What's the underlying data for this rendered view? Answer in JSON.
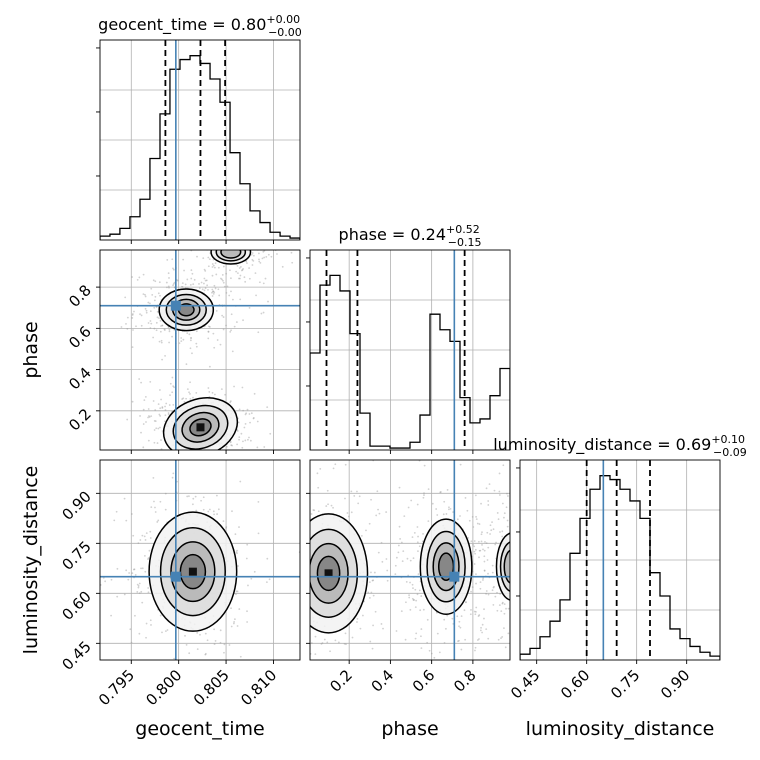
{
  "chart_data": {
    "type": "corner",
    "parameters": [
      "geocent_time",
      "phase",
      "luminosity_distance"
    ],
    "truths": {
      "geocent_time": 0.7997,
      "phase": 0.71,
      "luminosity_distance": 0.65
    },
    "titles": [
      {
        "parameter": "geocent_time",
        "label": "geocent_time",
        "median": "0.80",
        "plus": "+0.00",
        "minus": "−0.00"
      },
      {
        "parameter": "phase",
        "label": "phase",
        "median": "0.24",
        "plus": "+0.52",
        "minus": "−0.15"
      },
      {
        "parameter": "luminosity_distance",
        "label": "luminosity_distance",
        "median": "0.69",
        "plus": "+0.10",
        "minus": "−0.09"
      }
    ],
    "ranges": {
      "geocent_time": [
        0.7917,
        0.8128
      ],
      "phase": [
        0.01,
        0.98
      ],
      "luminosity_distance": [
        0.4,
        1.0
      ]
    },
    "ticks": {
      "geocent_time": [
        "0.795",
        "0.800",
        "0.805",
        "0.810"
      ],
      "phase": [
        "0.2",
        "0.4",
        "0.6",
        "0.8"
      ],
      "luminosity_distance": [
        "0.45",
        "0.60",
        "0.75",
        "0.90"
      ]
    },
    "quantile_lines": {
      "geocent_time": [
        0.7986,
        0.8023,
        0.8049
      ],
      "phase": [
        0.09,
        0.24,
        0.76
      ],
      "luminosity_distance": [
        0.6,
        0.69,
        0.79
      ]
    },
    "histograms": {
      "geocent_time": {
        "bin_edges": [
          0.7917,
          0.79275,
          0.7938,
          0.79486,
          0.79592,
          0.79697,
          0.79803,
          0.79908,
          0.80014,
          0.8012,
          0.80225,
          0.80331,
          0.80436,
          0.80542,
          0.80647,
          0.80753,
          0.80858,
          0.80964,
          0.8107,
          0.81175,
          0.8128
        ],
        "counts": [
          0.02,
          0.03,
          0.06,
          0.12,
          0.21,
          0.42,
          0.65,
          0.88,
          0.93,
          0.95,
          0.91,
          0.83,
          0.71,
          0.45,
          0.29,
          0.15,
          0.09,
          0.04,
          0.02,
          0.01
        ]
      },
      "phase": {
        "bin_edges": [
          0.01,
          0.0585,
          0.107,
          0.1555,
          0.204,
          0.2525,
          0.301,
          0.3495,
          0.398,
          0.4465,
          0.495,
          0.5435,
          0.592,
          0.6405,
          0.689,
          0.7375,
          0.786,
          0.8345,
          0.883,
          0.9315,
          0.98
        ],
        "counts": [
          0.5,
          0.85,
          0.9,
          0.82,
          0.6,
          0.19,
          0.02,
          0.02,
          0.01,
          0.01,
          0.04,
          0.18,
          0.7,
          0.62,
          0.56,
          0.27,
          0.14,
          0.16,
          0.28,
          0.42
        ]
      },
      "luminosity_distance": {
        "bin_edges": [
          0.4,
          0.43,
          0.46,
          0.49,
          0.52,
          0.55,
          0.58,
          0.61,
          0.64,
          0.67,
          0.7,
          0.73,
          0.76,
          0.79,
          0.82,
          0.85,
          0.88,
          0.91,
          0.94,
          0.97,
          1.0
        ],
        "counts": [
          0.03,
          0.06,
          0.12,
          0.2,
          0.31,
          0.55,
          0.73,
          0.88,
          0.95,
          0.93,
          0.88,
          0.82,
          0.73,
          0.45,
          0.33,
          0.16,
          0.11,
          0.07,
          0.04,
          0.02
        ]
      }
    },
    "contour_panels": [
      {
        "x": "geocent_time",
        "y": "phase",
        "modes": [
          {
            "cx": 0.8023,
            "cy": 0.12,
            "sx": 0.0019,
            "sy": 0.065,
            "angle": -20,
            "weight": 1.0
          },
          {
            "cx": 0.8008,
            "cy": 0.69,
            "sx": 0.0017,
            "sy": 0.06,
            "angle": 0,
            "weight": 0.8
          },
          {
            "cx": 0.8055,
            "cy": 0.97,
            "sx": 0.0018,
            "sy": 0.05,
            "angle": 0,
            "weight": 0.5
          }
        ]
      },
      {
        "x": "geocent_time",
        "y": "luminosity_distance",
        "modes": [
          {
            "cx": 0.8015,
            "cy": 0.665,
            "sx": 0.0022,
            "sy": 0.085,
            "angle": 0,
            "weight": 1.0
          }
        ]
      },
      {
        "x": "phase",
        "y": "luminosity_distance",
        "modes": [
          {
            "cx": 0.1,
            "cy": 0.66,
            "sx": 0.09,
            "sy": 0.085,
            "angle": 0,
            "weight": 1.0
          },
          {
            "cx": 0.67,
            "cy": 0.68,
            "sx": 0.07,
            "sy": 0.08,
            "angle": 0,
            "weight": 0.85
          },
          {
            "cx": 0.99,
            "cy": 0.68,
            "sx": 0.06,
            "sy": 0.08,
            "angle": 0,
            "weight": 0.6
          }
        ]
      }
    ],
    "colors": {
      "truth": "#4682b4",
      "hist": "#000000",
      "grid": "#b0b0b0"
    },
    "grid": true
  }
}
